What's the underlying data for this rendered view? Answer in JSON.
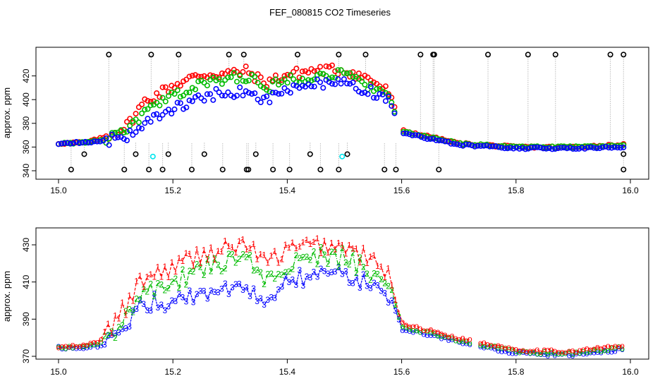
{
  "title": "FEF_080815  CO2 Timeseries",
  "colors": {
    "series1": "#ff0000",
    "series2": "#00bb00",
    "series3": "#0000ff",
    "spike": "#000000",
    "cyan": "#00e5ee",
    "gray_line": "#999999"
  },
  "chart_data": [
    {
      "type": "scatter",
      "title": "FEF_080815  CO2 Timeseries",
      "xlabel": "",
      "ylabel": "approx. ppm",
      "xlim": [
        15.0,
        16.0
      ],
      "ylim": [
        336,
        444
      ],
      "xticks": [
        15.0,
        15.2,
        15.4,
        15.6,
        15.8,
        16.0
      ],
      "xtick_labels": [
        "15.0",
        "15.2",
        "15.4",
        "15.6",
        "15.8",
        "16.0"
      ],
      "yticks": [
        340,
        360,
        380,
        400,
        420
      ],
      "ytick_labels": [
        "340",
        "360",
        "380",
        "400",
        "420"
      ],
      "series": [
        {
          "name": "1",
          "color": "red",
          "marker": "circle"
        },
        {
          "name": "2",
          "color": "green",
          "marker": "circle"
        },
        {
          "name": "3",
          "color": "blue",
          "marker": "circle"
        },
        {
          "name": "black spikes",
          "color": "black",
          "marker": "circle",
          "low_values": [
            341,
            354,
            341,
            354,
            341,
            341,
            354,
            341,
            354,
            341,
            341,
            341,
            354,
            341,
            341,
            354,
            341,
            341,
            354,
            341,
            341,
            341
          ],
          "high_values": [
            438,
            438,
            438,
            438,
            438,
            438,
            438,
            438,
            438,
            438,
            438,
            438,
            438,
            438,
            438
          ]
        },
        {
          "name": "cyan",
          "color": "cyan",
          "marker": "circle",
          "points": [
            [
              15.165,
              352
            ],
            [
              15.496,
              352
            ]
          ]
        }
      ],
      "profile": {
        "x": [
          15.0,
          15.05,
          15.08,
          15.12,
          15.15,
          15.2,
          15.25,
          15.3,
          15.33,
          15.36,
          15.4,
          15.45,
          15.5,
          15.55,
          15.58,
          15.6,
          15.7,
          15.8,
          15.85,
          15.9,
          15.99
        ],
        "s1": [
          363,
          364,
          368,
          378,
          398,
          412,
          421,
          422,
          424,
          414,
          421,
          425,
          425,
          416,
          405,
          374,
          363,
          360,
          360,
          360,
          362
        ],
        "s2": [
          363,
          364,
          366,
          373,
          389,
          403,
          413,
          418,
          420,
          409,
          417,
          421,
          421,
          411,
          401,
          373,
          363,
          360,
          360,
          360,
          361
        ],
        "s3": [
          363,
          364,
          365,
          370,
          380,
          392,
          402,
          407,
          405,
          400,
          408,
          414,
          413,
          406,
          398,
          372,
          362,
          359,
          359,
          359,
          360
        ]
      }
    },
    {
      "type": "line",
      "title": "",
      "xlabel": "",
      "ylabel": "approx. ppm",
      "xlim": [
        15.0,
        16.0
      ],
      "ylim": [
        369,
        437
      ],
      "xticks": [
        15.0,
        15.2,
        15.4,
        15.6,
        15.8,
        16.0
      ],
      "xtick_labels": [
        "15.0",
        "15.2",
        "15.4",
        "15.6",
        "15.8",
        "16.0"
      ],
      "yticks": [
        370,
        390,
        410,
        430
      ],
      "ytick_labels": [
        "370",
        "390",
        "410",
        "430"
      ],
      "series": [
        {
          "name": "1",
          "color": "red",
          "marker_text": "1"
        },
        {
          "name": "2",
          "color": "green",
          "marker_text": "2"
        },
        {
          "name": "3",
          "color": "blue",
          "marker_text": "3"
        }
      ],
      "profile": {
        "x": [
          15.0,
          15.05,
          15.08,
          15.12,
          15.15,
          15.2,
          15.25,
          15.3,
          15.33,
          15.36,
          15.4,
          15.45,
          15.5,
          15.55,
          15.58,
          15.6,
          15.7,
          15.8,
          15.85,
          15.9,
          15.99
        ],
        "s1": [
          375,
          376,
          380,
          398,
          412,
          418,
          425,
          428,
          431,
          420,
          427,
          430,
          429,
          421,
          412,
          388,
          380,
          374,
          373,
          373,
          376
        ],
        "s2": [
          375,
          375,
          378,
          392,
          405,
          410,
          417,
          422,
          426,
          412,
          420,
          424,
          423,
          415,
          408,
          386,
          379,
          373,
          372,
          372,
          375
        ],
        "s3": [
          375,
          375,
          376,
          388,
          398,
          400,
          404,
          408,
          407,
          400,
          411,
          414,
          413,
          408,
          403,
          385,
          378,
          372,
          371,
          371,
          374
        ]
      }
    }
  ]
}
